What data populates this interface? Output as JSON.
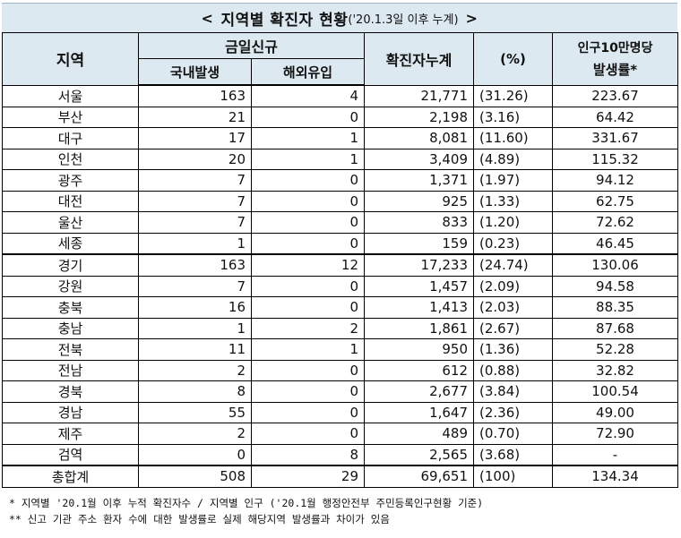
{
  "title": {
    "prefix_arrow": "<",
    "main": "지역별 확진자 현황",
    "sub": "('20.1.3일 이후 누계)",
    "suffix_arrow": ">"
  },
  "headers": {
    "region": "지역",
    "new_today": "금일신규",
    "domestic": "국내발생",
    "overseas": "해외유입",
    "cumulative": "확진자누계",
    "percent": "(%)",
    "rate_line1": "인구10만명당",
    "rate_line2": "발생률*"
  },
  "rows": [
    {
      "region": "서울",
      "domestic": "163",
      "overseas": "4",
      "cumulative": "21,771",
      "percent": "(31.26)",
      "rate": "223.67"
    },
    {
      "region": "부산",
      "domestic": "21",
      "overseas": "0",
      "cumulative": "2,198",
      "percent": "(3.16)",
      "rate": "64.42"
    },
    {
      "region": "대구",
      "domestic": "17",
      "overseas": "1",
      "cumulative": "8,081",
      "percent": "(11.60)",
      "rate": "331.67"
    },
    {
      "region": "인천",
      "domestic": "20",
      "overseas": "1",
      "cumulative": "3,409",
      "percent": "(4.89)",
      "rate": "115.32"
    },
    {
      "region": "광주",
      "domestic": "7",
      "overseas": "0",
      "cumulative": "1,371",
      "percent": "(1.97)",
      "rate": "94.12"
    },
    {
      "region": "대전",
      "domestic": "7",
      "overseas": "0",
      "cumulative": "925",
      "percent": "(1.33)",
      "rate": "62.75"
    },
    {
      "region": "울산",
      "domestic": "7",
      "overseas": "0",
      "cumulative": "833",
      "percent": "(1.20)",
      "rate": "72.62"
    },
    {
      "region": "세종",
      "domestic": "1",
      "overseas": "0",
      "cumulative": "159",
      "percent": "(0.23)",
      "rate": "46.45"
    },
    {
      "region": "경기",
      "domestic": "163",
      "overseas": "12",
      "cumulative": "17,233",
      "percent": "(24.74)",
      "rate": "130.06"
    },
    {
      "region": "강원",
      "domestic": "7",
      "overseas": "0",
      "cumulative": "1,457",
      "percent": "(2.09)",
      "rate": "94.58"
    },
    {
      "region": "충북",
      "domestic": "16",
      "overseas": "0",
      "cumulative": "1,413",
      "percent": "(2.03)",
      "rate": "88.35"
    },
    {
      "region": "충남",
      "domestic": "1",
      "overseas": "2",
      "cumulative": "1,861",
      "percent": "(2.67)",
      "rate": "87.68"
    },
    {
      "region": "전북",
      "domestic": "11",
      "overseas": "1",
      "cumulative": "950",
      "percent": "(1.36)",
      "rate": "52.28"
    },
    {
      "region": "전남",
      "domestic": "2",
      "overseas": "0",
      "cumulative": "612",
      "percent": "(0.88)",
      "rate": "32.82"
    },
    {
      "region": "경북",
      "domestic": "8",
      "overseas": "0",
      "cumulative": "2,677",
      "percent": "(3.84)",
      "rate": "100.54"
    },
    {
      "region": "경남",
      "domestic": "55",
      "overseas": "0",
      "cumulative": "1,647",
      "percent": "(2.36)",
      "rate": "49.00"
    },
    {
      "region": "제주",
      "domestic": "2",
      "overseas": "0",
      "cumulative": "489",
      "percent": "(0.70)",
      "rate": "72.90"
    },
    {
      "region": "검역",
      "domestic": "0",
      "overseas": "8",
      "cumulative": "2,565",
      "percent": "(3.68)",
      "rate": "-"
    }
  ],
  "total": {
    "region": "총합계",
    "domestic": "508",
    "overseas": "29",
    "cumulative": "69,651",
    "percent": "(100)",
    "rate": "134.34"
  },
  "notes": [
    "* 지역별 '20.1월 이후 누적 확진자수 / 지역별 인구 ('20.1월 행정안전부 주민등록인구현황 기준)",
    "** 신고 기관 주소 환자 수에 대한 발생률로 실제 해당지역 발생률과 차이가 있음"
  ],
  "colors": {
    "header_bg": "#dce9f1"
  }
}
